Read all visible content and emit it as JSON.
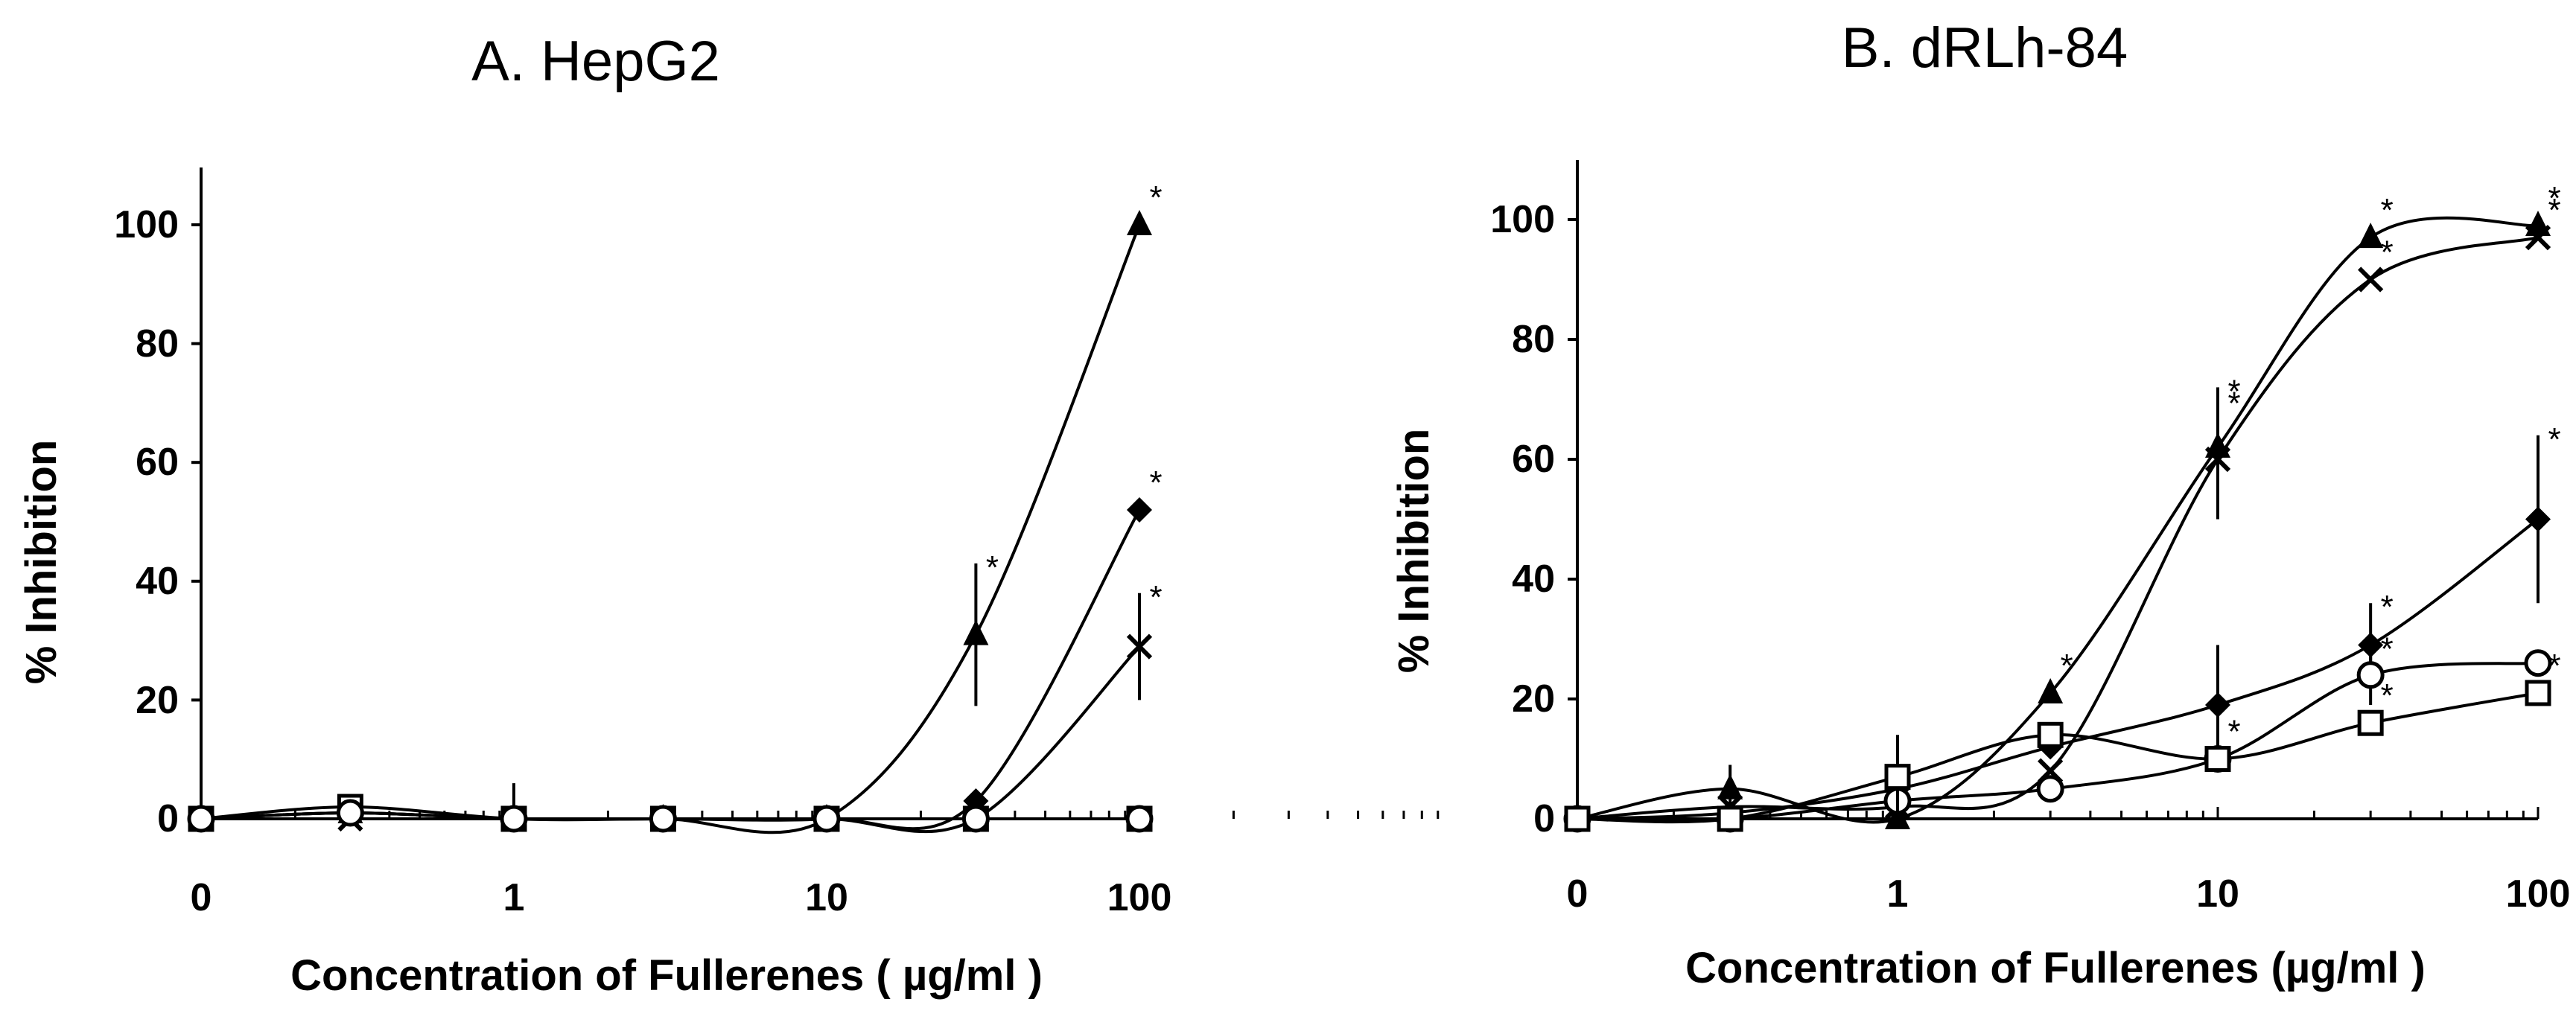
{
  "chart_data": [
    {
      "type": "line",
      "title": "A. HepG2",
      "xlabel": "Concentration of Fullerenes ( µg/ml )",
      "ylabel": "% Inhibition",
      "xscale": "log (0 shown at left)",
      "x_ticks": [
        "0",
        "1",
        "10",
        "100"
      ],
      "y_ticks": [
        "0",
        "20",
        "40",
        "60",
        "80",
        "100"
      ],
      "ylim": [
        0,
        110
      ],
      "series": [
        {
          "name": "triangle",
          "marker": "triangle",
          "x": [
            0,
            0.3,
            1,
            3,
            10,
            30,
            100
          ],
          "y": [
            0,
            1,
            0,
            0,
            0,
            31,
            100
          ],
          "err": [
            0,
            0,
            0,
            0,
            0,
            12,
            0
          ],
          "sig": [
            false,
            false,
            false,
            false,
            false,
            true,
            true
          ]
        },
        {
          "name": "diamond",
          "marker": "diamond",
          "x": [
            0,
            0.3,
            1,
            3,
            10,
            30,
            100
          ],
          "y": [
            0,
            1,
            0,
            0,
            0,
            3,
            52
          ],
          "err": [
            0,
            0,
            0,
            0,
            0,
            0,
            0
          ],
          "sig": [
            false,
            false,
            false,
            false,
            false,
            false,
            true
          ]
        },
        {
          "name": "cross",
          "marker": "x",
          "x": [
            0,
            0.3,
            1,
            3,
            10,
            30,
            100
          ],
          "y": [
            0,
            0,
            0,
            0,
            0,
            0,
            29
          ],
          "err": [
            0,
            0,
            6,
            0,
            0,
            0,
            9
          ],
          "sig": [
            false,
            false,
            false,
            false,
            false,
            false,
            true
          ]
        },
        {
          "name": "square",
          "marker": "square",
          "x": [
            0,
            0.3,
            1,
            3,
            10,
            30,
            100
          ],
          "y": [
            0,
            2,
            0,
            0,
            0,
            0,
            0
          ],
          "err": [
            0,
            0,
            0,
            0,
            0,
            0,
            0
          ],
          "sig": [
            false,
            false,
            false,
            false,
            false,
            false,
            false
          ]
        },
        {
          "name": "circle",
          "marker": "circle",
          "x": [
            0,
            0.3,
            1,
            3,
            10,
            30,
            100
          ],
          "y": [
            0,
            1,
            0,
            0,
            0,
            0,
            0
          ],
          "err": [
            0,
            0,
            0,
            0,
            0,
            0,
            0
          ],
          "sig": [
            false,
            false,
            false,
            false,
            false,
            false,
            false
          ]
        }
      ]
    },
    {
      "type": "line",
      "title": "B. dRLh-84",
      "xlabel": "Concentration of Fullerenes (µg/ml )",
      "ylabel": "% Inhibition",
      "xscale": "log (0 shown at left)",
      "x_ticks": [
        "0",
        "1",
        "10",
        "100"
      ],
      "y_ticks": [
        "0",
        "20",
        "40",
        "60",
        "80",
        "100"
      ],
      "ylim": [
        0,
        110
      ],
      "series": [
        {
          "name": "triangle",
          "marker": "triangle",
          "x": [
            0,
            0.3,
            1,
            3,
            10,
            30,
            100
          ],
          "y": [
            0,
            5,
            0,
            21,
            62,
            97,
            99
          ],
          "err": [
            0,
            4,
            0,
            0,
            10,
            0,
            0
          ],
          "sig": [
            false,
            false,
            false,
            true,
            true,
            true,
            true
          ]
        },
        {
          "name": "cross",
          "marker": "x",
          "x": [
            0,
            0.3,
            1,
            3,
            10,
            30,
            100
          ],
          "y": [
            0,
            2,
            2,
            8,
            60,
            90,
            97
          ],
          "err": [
            0,
            0,
            0,
            0,
            10,
            0,
            0
          ],
          "sig": [
            false,
            false,
            false,
            false,
            true,
            true,
            true
          ]
        },
        {
          "name": "diamond",
          "marker": "diamond",
          "x": [
            0,
            0.3,
            1,
            3,
            10,
            30,
            100
          ],
          "y": [
            0,
            1,
            5,
            12,
            19,
            29,
            50
          ],
          "err": [
            0,
            0,
            0,
            0,
            10,
            7,
            14
          ],
          "sig": [
            false,
            false,
            false,
            false,
            false,
            true,
            true
          ]
        },
        {
          "name": "circle",
          "marker": "circle",
          "x": [
            0,
            0.3,
            1,
            3,
            10,
            30,
            100
          ],
          "y": [
            0,
            0,
            3,
            5,
            10,
            24,
            26
          ],
          "err": [
            0,
            0,
            0,
            0,
            0,
            5,
            0
          ],
          "sig": [
            false,
            false,
            false,
            false,
            true,
            true,
            false
          ]
        },
        {
          "name": "square",
          "marker": "square",
          "x": [
            0,
            0.3,
            1,
            3,
            10,
            30,
            100
          ],
          "y": [
            0,
            0,
            7,
            14,
            10,
            16,
            21
          ],
          "err": [
            0,
            0,
            7,
            0,
            0,
            0,
            0
          ],
          "sig": [
            false,
            false,
            false,
            false,
            false,
            true,
            true
          ]
        }
      ]
    }
  ]
}
